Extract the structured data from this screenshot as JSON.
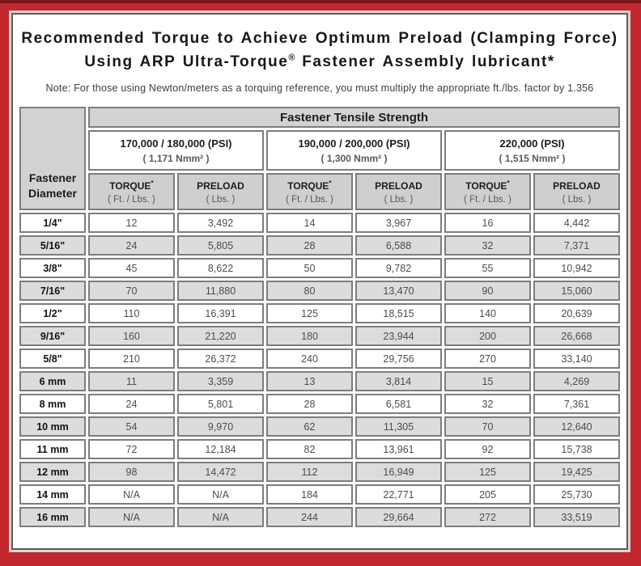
{
  "colors": {
    "frame_red": "#c1272d",
    "frame_top_edge": "#7a1518",
    "header_gray": "#d3d3d3",
    "subheader_gray": "#cfcfcf",
    "shaded_row_gray": "#dcdcdc",
    "cell_border": "#7d7d7d"
  },
  "header": {
    "title_line1": "Recommended Torque to Achieve Optimum Preload (Clamping Force)",
    "title_line2_pre": "Using ARP Ultra-Torque",
    "title_line2_sup": "®",
    "title_line2_post": " Fastener Assembly lubricant*",
    "note": "Note: For those using Newton/meters as a torquing reference, you must multiply the appropriate ft./lbs. factor by 1.356"
  },
  "table": {
    "corner_line1": "Fastener",
    "corner_line2": "Diameter",
    "tensile_header": "Fastener Tensile Strength",
    "strength_groups": [
      {
        "psi": "170,000 / 180,000 (PSI)",
        "nmm": "( 1,171 Nmm² )"
      },
      {
        "psi": "190,000 / 200,000 (PSI)",
        "nmm": "( 1,300 Nmm² )"
      },
      {
        "psi": "220,000 (PSI)",
        "nmm": "( 1,515 Nmm² )"
      }
    ],
    "col_headers": [
      {
        "label": "TORQUE",
        "sup": "*",
        "sub": "( Ft. / Lbs. )"
      },
      {
        "label": "PRELOAD",
        "sup": "",
        "sub": "( Lbs. )"
      },
      {
        "label": "TORQUE",
        "sup": "*",
        "sub": "( Ft. / Lbs. )"
      },
      {
        "label": "PRELOAD",
        "sup": "",
        "sub": "( Lbs. )"
      },
      {
        "label": "TORQUE",
        "sup": "*",
        "sub": "( Ft. / Lbs. )"
      },
      {
        "label": "PRELOAD",
        "sup": "",
        "sub": "( Lbs. )"
      }
    ],
    "rows": [
      {
        "diameter": "1/4\"",
        "values": [
          "12",
          "3,492",
          "14",
          "3,967",
          "16",
          "4,442"
        ]
      },
      {
        "diameter": "5/16\"",
        "values": [
          "24",
          "5,805",
          "28",
          "6,588",
          "32",
          "7,371"
        ]
      },
      {
        "diameter": "3/8\"",
        "values": [
          "45",
          "8,622",
          "50",
          "9,782",
          "55",
          "10,942"
        ]
      },
      {
        "diameter": "7/16\"",
        "values": [
          "70",
          "11,880",
          "80",
          "13,470",
          "90",
          "15,060"
        ]
      },
      {
        "diameter": "1/2\"",
        "values": [
          "110",
          "16,391",
          "125",
          "18,515",
          "140",
          "20,639"
        ]
      },
      {
        "diameter": "9/16\"",
        "values": [
          "160",
          "21,220",
          "180",
          "23,944",
          "200",
          "26,668"
        ]
      },
      {
        "diameter": "5/8\"",
        "values": [
          "210",
          "26,372",
          "240",
          "29,756",
          "270",
          "33,140"
        ]
      },
      {
        "diameter": "6 mm",
        "values": [
          "11",
          "3,359",
          "13",
          "3,814",
          "15",
          "4,269"
        ]
      },
      {
        "diameter": "8 mm",
        "values": [
          "24",
          "5,801",
          "28",
          "6,581",
          "32",
          "7,361"
        ]
      },
      {
        "diameter": "10 mm",
        "values": [
          "54",
          "9,970",
          "62",
          "11,305",
          "70",
          "12,640"
        ]
      },
      {
        "diameter": "11 mm",
        "values": [
          "72",
          "12,184",
          "82",
          "13,961",
          "92",
          "15,738"
        ]
      },
      {
        "diameter": "12 mm",
        "values": [
          "98",
          "14,472",
          "112",
          "16,949",
          "125",
          "19,425"
        ]
      },
      {
        "diameter": "14 mm",
        "values": [
          "N/A",
          "N/A",
          "184",
          "22,771",
          "205",
          "25,730"
        ]
      },
      {
        "diameter": "16 mm",
        "values": [
          "N/A",
          "N/A",
          "244",
          "29,664",
          "272",
          "33,519"
        ]
      }
    ]
  }
}
